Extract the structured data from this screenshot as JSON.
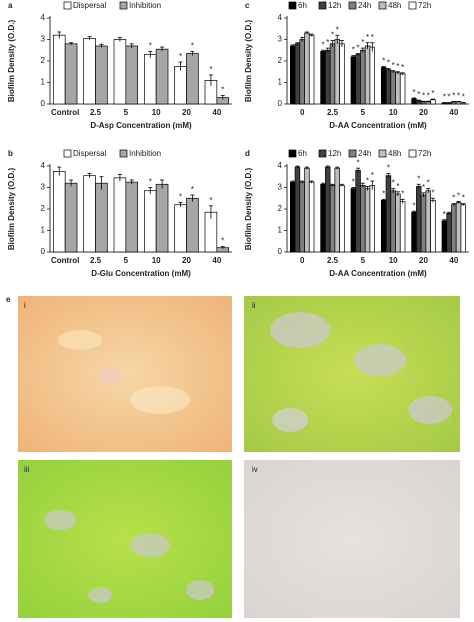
{
  "chart_data": [
    {
      "type": "bar",
      "panel": "a",
      "ylabel": "Biofilm Density (O.D.)",
      "xlabel": "D-Asp Concentration (mM)",
      "categories": [
        "Control",
        "2.5",
        "5",
        "10",
        "20",
        "40"
      ],
      "ylim": [
        0,
        4
      ],
      "yticks": [
        0,
        1,
        2,
        3,
        4
      ],
      "series": [
        {
          "name": "Dispersal",
          "color": "#ffffff",
          "values": [
            3.2,
            3.05,
            3.0,
            2.3,
            1.75,
            1.1
          ],
          "errors": [
            0.15,
            0.08,
            0.1,
            0.15,
            0.2,
            0.25
          ],
          "stars": [
            null,
            null,
            null,
            "*",
            "*",
            "*"
          ]
        },
        {
          "name": "Inhibition",
          "color": "#a6a6a6",
          "values": [
            2.8,
            2.7,
            2.7,
            2.55,
            2.35,
            0.3
          ],
          "errors": [
            0.05,
            0.08,
            0.1,
            0.1,
            0.1,
            0.1
          ],
          "stars": [
            null,
            null,
            null,
            null,
            "*",
            "*"
          ]
        }
      ]
    },
    {
      "type": "bar",
      "panel": "b",
      "ylabel": "Biofilm Density (O.D.)",
      "xlabel": "D-Glu Concentration (mM)",
      "categories": [
        "Control",
        "2.5",
        "5",
        "10",
        "20",
        "40"
      ],
      "ylim": [
        0,
        4
      ],
      "yticks": [
        0,
        1,
        2,
        3,
        4
      ],
      "series": [
        {
          "name": "Dispersal",
          "color": "#ffffff",
          "values": [
            3.75,
            3.55,
            3.45,
            2.85,
            2.2,
            1.85
          ],
          "errors": [
            0.2,
            0.1,
            0.15,
            0.15,
            0.1,
            0.3
          ],
          "stars": [
            null,
            null,
            null,
            "*",
            "*",
            "*"
          ]
        },
        {
          "name": "Inhibition",
          "color": "#a6a6a6",
          "values": [
            3.2,
            3.2,
            3.25,
            3.15,
            2.5,
            0.2
          ],
          "errors": [
            0.15,
            0.3,
            0.1,
            0.2,
            0.15,
            0.05
          ],
          "stars": [
            null,
            null,
            null,
            null,
            "*",
            "*"
          ]
        }
      ]
    },
    {
      "type": "bar",
      "panel": "c",
      "ylabel": "Biofilm Density (O.D.)",
      "xlabel": "D-AA Concentration (mM)",
      "categories": [
        "0",
        "2.5",
        "5",
        "10",
        "20",
        "40"
      ],
      "ylim": [
        0,
        4
      ],
      "yticks": [
        0,
        1,
        2,
        3,
        4
      ],
      "series": [
        {
          "name": "6h",
          "color": "#000000",
          "values": [
            2.7,
            2.45,
            2.2,
            1.7,
            0.25,
            0.05
          ],
          "errors": [
            0.05,
            0.05,
            0.05,
            0.05,
            0.03,
            0.02
          ],
          "stars": [
            null,
            "*",
            "*",
            "*",
            "*",
            "*"
          ]
        },
        {
          "name": "12h",
          "color": "#404040",
          "values": [
            2.8,
            2.5,
            2.3,
            1.6,
            0.15,
            0.05
          ],
          "errors": [
            0.05,
            0.1,
            0.05,
            0.05,
            0.03,
            0.02
          ],
          "stars": [
            null,
            "*",
            "*",
            "*",
            "*",
            "*"
          ]
        },
        {
          "name": "24h",
          "color": "#808080",
          "values": [
            3.0,
            2.8,
            2.5,
            1.5,
            0.1,
            0.1
          ],
          "errors": [
            0.1,
            0.15,
            0.1,
            0.05,
            0.03,
            0.02
          ],
          "stars": [
            null,
            "*",
            "*",
            "*",
            "*",
            "*"
          ]
        },
        {
          "name": "48h",
          "color": "#bfbfbf",
          "values": [
            3.3,
            3.0,
            2.7,
            1.45,
            0.1,
            0.1
          ],
          "errors": [
            0.05,
            0.2,
            0.15,
            0.05,
            0.03,
            0.02
          ],
          "stars": [
            null,
            "*",
            "*",
            "*",
            "*",
            "*"
          ]
        },
        {
          "name": "72h",
          "color": "#ffffff",
          "values": [
            3.2,
            2.8,
            2.65,
            1.4,
            0.2,
            0.05
          ],
          "errors": [
            0.05,
            0.15,
            0.2,
            0.05,
            0.03,
            0.02
          ],
          "stars": [
            null,
            null,
            "*",
            "*",
            "*",
            "*"
          ]
        }
      ]
    },
    {
      "type": "bar",
      "panel": "d",
      "ylabel": "Biofilm Density (O.D.)",
      "xlabel": "D-AA Concentration (mM)",
      "categories": [
        "0",
        "2.5",
        "5",
        "10",
        "20",
        "40"
      ],
      "ylim": [
        0,
        4
      ],
      "yticks": [
        0,
        1,
        2,
        3,
        4
      ],
      "series": [
        {
          "name": "6h",
          "color": "#000000",
          "values": [
            3.25,
            3.15,
            2.95,
            2.4,
            1.85,
            1.45
          ],
          "errors": [
            0.05,
            0.05,
            0.05,
            0.05,
            0.05,
            0.05
          ],
          "stars": [
            null,
            null,
            "*",
            "*",
            "*",
            "*"
          ]
        },
        {
          "name": "12h",
          "color": "#404040",
          "values": [
            3.95,
            3.95,
            3.8,
            3.55,
            3.05,
            1.8
          ],
          "errors": [
            0.05,
            0.05,
            0.1,
            0.1,
            0.1,
            0.05
          ],
          "stars": [
            null,
            null,
            "*",
            "*",
            "*",
            null
          ]
        },
        {
          "name": "24h",
          "color": "#808080",
          "values": [
            3.25,
            3.1,
            3.1,
            2.85,
            2.65,
            2.2
          ],
          "errors": [
            0.05,
            0.05,
            0.1,
            0.1,
            0.1,
            0.05
          ],
          "stars": [
            null,
            null,
            null,
            "*",
            "*",
            "*"
          ]
        },
        {
          "name": "48h",
          "color": "#bfbfbf",
          "values": [
            3.9,
            3.9,
            2.95,
            2.7,
            2.85,
            2.3
          ],
          "errors": [
            0.05,
            0.05,
            0.1,
            0.1,
            0.1,
            0.05
          ],
          "stars": [
            null,
            null,
            "*",
            "*",
            "*",
            "*"
          ]
        },
        {
          "name": "72h",
          "color": "#ffffff",
          "values": [
            3.25,
            3.1,
            3.1,
            2.35,
            2.4,
            2.2
          ],
          "errors": [
            0.05,
            0.05,
            0.2,
            0.1,
            0.1,
            0.05
          ],
          "stars": [
            null,
            null,
            "*",
            "*",
            "*",
            "*"
          ]
        }
      ]
    }
  ],
  "images": {
    "panel": "e",
    "labels": [
      "i",
      "ii",
      "iii",
      "iv"
    ]
  }
}
